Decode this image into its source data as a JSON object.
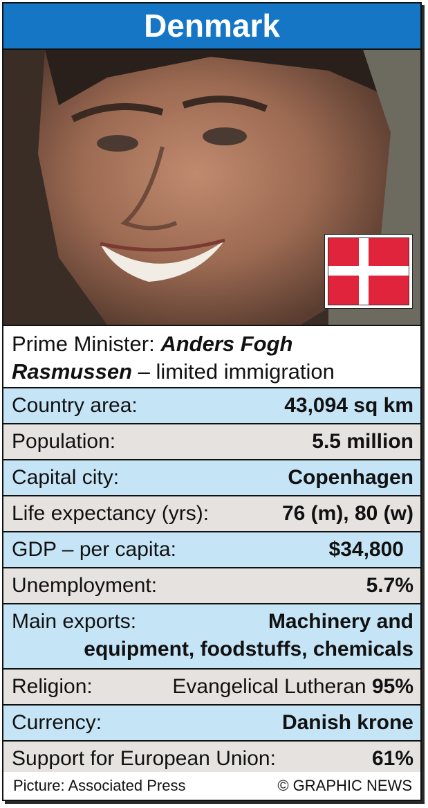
{
  "title": "Denmark",
  "photo": {
    "icon": "portrait-photo",
    "flag_icon": "denmark-flag"
  },
  "prime_minister": {
    "label": "Prime Minister:",
    "name": "Anders Fogh Rasmussen",
    "name_line1": "Anders Fogh",
    "name_line2": "Rasmussen",
    "note": "– limited immigration"
  },
  "facts": [
    {
      "label": "Country area:",
      "value": "43,094 sq km"
    },
    {
      "label": "Population:",
      "value": "5.5 million"
    },
    {
      "label": "Capital city:",
      "value": "Copenhagen"
    },
    {
      "label": "Life expectancy (yrs):",
      "value": "76 (m), 80 (w)"
    },
    {
      "label": "GDP – per capita:",
      "value": "$34,800"
    },
    {
      "label": "Unemployment:",
      "value": "5.7%"
    },
    {
      "label": "Main exports:",
      "value_line1": "Machinery and",
      "value_line2": "equipment, foodstuffs, chemicals"
    },
    {
      "label": "Religion:",
      "value_text": "Evangelical Lutheran",
      "value_pct": "95%"
    },
    {
      "label": "Currency:",
      "value": "Danish krone"
    },
    {
      "label": "Support for European Union:",
      "value": "61%"
    }
  ],
  "footer": {
    "credit": "Picture: Associated Press",
    "copyright": "© GRAPHIC NEWS"
  },
  "colors": {
    "title_bg": "#1576c6",
    "row_blue": "#c5e4f6",
    "row_gray": "#e6e2e0",
    "flag_red": "#e0243c"
  }
}
